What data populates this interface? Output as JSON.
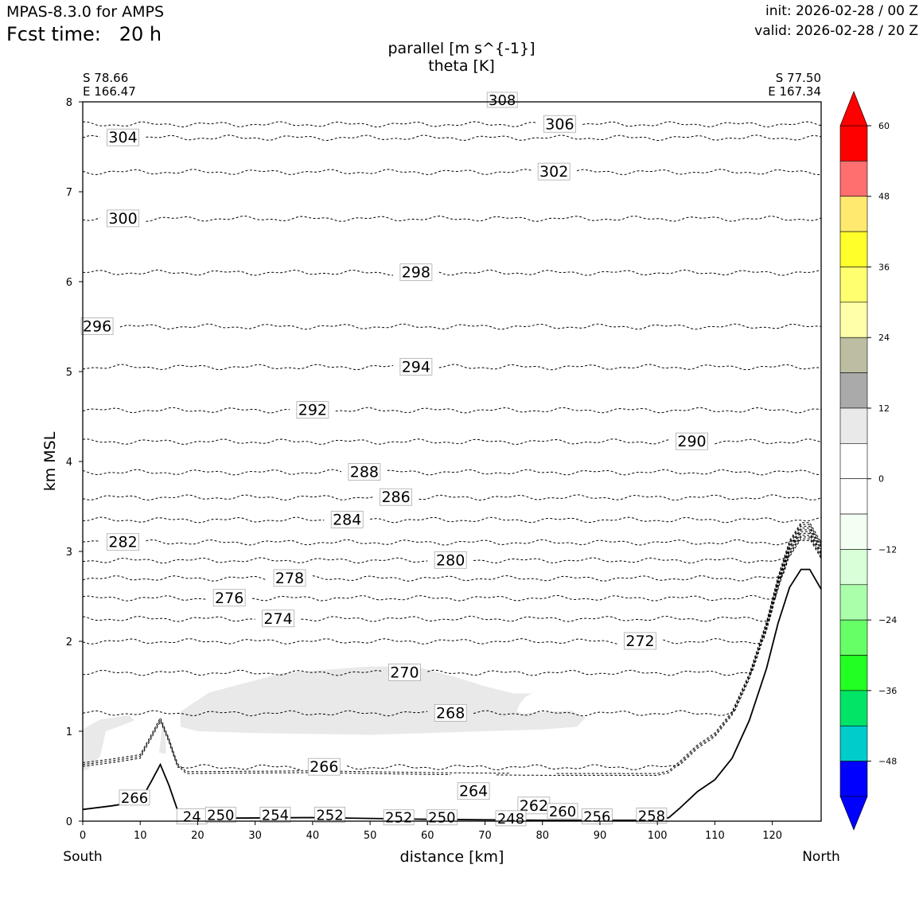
{
  "header": {
    "model": "MPAS-8.3.0 for AMPS",
    "fcst_label": "Fcst time:",
    "fcst_value": "20 h",
    "init": "init: 2026-02-28 / 00 Z",
    "valid": "valid: 2026-02-28 / 20 Z"
  },
  "chart_data": {
    "type": "contour",
    "title_line1": "parallel [m s^{-1}]",
    "title_line2": "theta [K]",
    "xlabel": "distance [km]",
    "ylabel": "km MSL",
    "xlim": [
      0,
      128.5
    ],
    "ylim": [
      0,
      8
    ],
    "x_ticks": [
      0,
      10,
      20,
      30,
      40,
      50,
      60,
      70,
      80,
      90,
      100,
      110,
      120
    ],
    "y_ticks": [
      0,
      1,
      2,
      3,
      4,
      5,
      6,
      7,
      8
    ],
    "left_point": {
      "lat": "S 78.66",
      "lon": "E 166.47",
      "end_label": "South"
    },
    "right_point": {
      "lat": "S 77.50",
      "lon": "E 167.34",
      "end_label": "North"
    },
    "terrain": [
      [
        0,
        0.13
      ],
      [
        5,
        0.17
      ],
      [
        10,
        0.22
      ],
      [
        12,
        0.45
      ],
      [
        13.5,
        0.63
      ],
      [
        15,
        0.4
      ],
      [
        16.5,
        0.12
      ],
      [
        18,
        0.03
      ],
      [
        40,
        0.04
      ],
      [
        60,
        0.02
      ],
      [
        80,
        0.01
      ],
      [
        100,
        0.01
      ],
      [
        102,
        0.04
      ],
      [
        104,
        0.15
      ],
      [
        107,
        0.33
      ],
      [
        110,
        0.46
      ],
      [
        113,
        0.7
      ],
      [
        116,
        1.12
      ],
      [
        119,
        1.7
      ],
      [
        121,
        2.2
      ],
      [
        123,
        2.6
      ],
      [
        125,
        2.8
      ],
      [
        126.5,
        2.8
      ],
      [
        128.5,
        2.58
      ]
    ],
    "theta_contours": [
      {
        "level": 304,
        "height": 7.6,
        "label_x": 7
      },
      {
        "level": 306,
        "height": 7.75,
        "label_x": 83
      },
      {
        "level": 302,
        "height": 7.22,
        "label_x": 82
      },
      {
        "level": 300,
        "height": 6.7,
        "label_x": 7
      },
      {
        "level": 298,
        "height": 6.1,
        "label_x": 58
      },
      {
        "level": 296,
        "height": 5.5,
        "label_x": 2.5
      },
      {
        "level": 294,
        "height": 5.05,
        "label_x": 58
      },
      {
        "level": 292,
        "height": 4.57,
        "label_x": 40
      },
      {
        "level": 290,
        "height": 4.22,
        "label_x": 106
      },
      {
        "level": 288,
        "height": 3.88,
        "label_x": 49
      },
      {
        "level": 286,
        "height": 3.6,
        "label_x": 54.5
      },
      {
        "level": 284,
        "height": 3.35,
        "label_x": 46
      },
      {
        "level": 282,
        "height": 3.1,
        "label_x": 7
      },
      {
        "level": 280,
        "height": 2.9,
        "label_x": 64
      },
      {
        "level": 278,
        "height": 2.7,
        "label_x": 36
      },
      {
        "level": 276,
        "height": 2.48,
        "label_x": 25.5
      },
      {
        "level": 274,
        "height": 2.25,
        "label_x": 34
      },
      {
        "level": 272,
        "height": 2.0,
        "label_x": 97
      },
      {
        "level": 270,
        "height": 1.65,
        "label_x": 56
      },
      {
        "level": 268,
        "height": 1.2,
        "label_x": 64
      },
      {
        "level": 266,
        "height": 0.6,
        "label_x": 42
      },
      {
        "level": 264,
        "height": 0.33,
        "label_x": 68
      },
      {
        "level": 262,
        "height": 0.17,
        "label_x": 78.5
      }
    ],
    "near_surface_labels": [
      {
        "text": "266",
        "x": 9,
        "y": 0.24
      },
      {
        "text": "24",
        "x": 19,
        "y": 0.03
      },
      {
        "text": "250",
        "x": 24,
        "y": 0.05
      },
      {
        "text": "254",
        "x": 33.5,
        "y": 0.05
      },
      {
        "text": "252",
        "x": 43,
        "y": 0.05
      },
      {
        "text": "252",
        "x": 55,
        "y": 0.02
      },
      {
        "text": "250",
        "x": 62.5,
        "y": 0.02
      },
      {
        "text": "248",
        "x": 74.5,
        "y": 0.01
      },
      {
        "text": "260",
        "x": 83.5,
        "y": 0.09
      },
      {
        "text": "256",
        "x": 89.5,
        "y": 0.03
      },
      {
        "text": "258",
        "x": 99,
        "y": 0.04
      },
      {
        "text": "308",
        "x": 73,
        "y": 8.0
      }
    ],
    "shaded_regions": [
      {
        "name": "jet-region",
        "value_range": [
          0,
          12
        ],
        "points": [
          [
            17,
            1.22
          ],
          [
            22,
            1.43
          ],
          [
            35,
            1.65
          ],
          [
            50,
            1.72
          ],
          [
            58,
            1.72
          ],
          [
            65,
            1.6
          ],
          [
            70,
            1.5
          ],
          [
            75,
            1.42
          ],
          [
            78,
            1.42
          ],
          [
            79,
            1.45
          ],
          [
            77,
            1.38
          ],
          [
            76,
            1.3
          ],
          [
            75.5,
            1.22
          ],
          [
            76.5,
            1.2
          ],
          [
            85,
            1.23
          ],
          [
            87.5,
            1.15
          ],
          [
            86,
            1.05
          ],
          [
            80,
            1.02
          ],
          [
            70,
            1.0
          ],
          [
            60,
            0.98
          ],
          [
            50,
            0.96
          ],
          [
            40,
            0.97
          ],
          [
            30,
            0.98
          ],
          [
            20,
            1.0
          ],
          [
            17,
            1.05
          ]
        ]
      },
      {
        "name": "left-region",
        "value_range": [
          0,
          12
        ],
        "points": [
          [
            0,
            1.02
          ],
          [
            3,
            1.13
          ],
          [
            8,
            1.18
          ],
          [
            9,
            1.12
          ],
          [
            7,
            1.07
          ],
          [
            4,
            1.0
          ],
          [
            3.5,
            0.85
          ],
          [
            3,
            0.72
          ],
          [
            1,
            0.58
          ],
          [
            0,
            0.56
          ]
        ]
      },
      {
        "name": "sliver-region",
        "value_range": [
          0,
          12
        ],
        "points": [
          [
            13.3,
            0.76
          ],
          [
            13.8,
            1.05
          ],
          [
            14.1,
            1.13
          ],
          [
            14.4,
            0.9
          ],
          [
            14.5,
            0.75
          ]
        ]
      }
    ],
    "colorbar": {
      "label_values": [
        60,
        48,
        36,
        24,
        12,
        0,
        -12,
        -24,
        -36,
        -48
      ],
      "tick_labels": [
        "60",
        "48",
        "36",
        "24",
        "12",
        "0",
        "−12",
        "−24",
        "−36",
        "−48"
      ],
      "bins": [
        {
          "from": 54,
          "to": 60,
          "color": "#ff0000"
        },
        {
          "from": 48,
          "to": 54,
          "color": "#ff6f6f"
        },
        {
          "from": 42,
          "to": 48,
          "color": "#ffe96f"
        },
        {
          "from": 36,
          "to": 42,
          "color": "#ffff2a"
        },
        {
          "from": 30,
          "to": 36,
          "color": "#ffff70"
        },
        {
          "from": 24,
          "to": 30,
          "color": "#ffffaa"
        },
        {
          "from": 18,
          "to": 24,
          "color": "#bdbda1"
        },
        {
          "from": 12,
          "to": 18,
          "color": "#aaaaaa"
        },
        {
          "from": 6,
          "to": 12,
          "color": "#e9e9e9"
        },
        {
          "from": 0,
          "to": 6,
          "color": "#ffffff"
        },
        {
          "from": -6,
          "to": 0,
          "color": "#ffffff"
        },
        {
          "from": -12,
          "to": -6,
          "color": "#f2fff2"
        },
        {
          "from": -18,
          "to": -12,
          "color": "#d8ffd8"
        },
        {
          "from": -24,
          "to": -18,
          "color": "#aaffaa"
        },
        {
          "from": -30,
          "to": -24,
          "color": "#66ff66"
        },
        {
          "from": -36,
          "to": -30,
          "color": "#22ff22"
        },
        {
          "from": -42,
          "to": -36,
          "color": "#00e566"
        },
        {
          "from": -48,
          "to": -42,
          "color": "#00cccc"
        },
        {
          "from": -54,
          "to": -48,
          "color": "#0000ff"
        }
      ],
      "extend_max_color": "#ff0000",
      "extend_min_color": "#0000ff"
    }
  }
}
